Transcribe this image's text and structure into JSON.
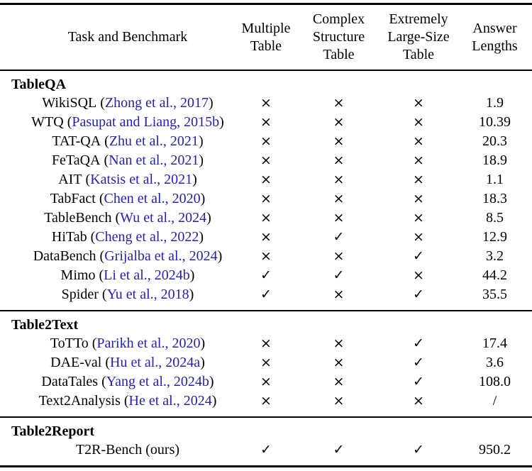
{
  "punct": {
    "open": "(",
    "close": ")"
  },
  "colors": {
    "citation": "#2222bb",
    "rule": "#000000",
    "text": "#000000"
  },
  "table": {
    "header": {
      "benchmark": "Task and Benchmark",
      "multiple": "Multiple\nTable",
      "complex": "Complex\nStructure\nTable",
      "large": "Extremely\nLarge-Size\nTable",
      "answer": "Answer\nLengths"
    },
    "sections": [
      {
        "title": "TableQA",
        "rows": [
          {
            "name": "WikiSQL",
            "cite": "Zhong et al., 2017",
            "marks": [
              "×",
              "×",
              "×"
            ],
            "answer": "1.9"
          },
          {
            "name": "WTQ",
            "cite": "Pasupat and Liang, 2015b",
            "marks": [
              "×",
              "×",
              "×"
            ],
            "answer": "10.39"
          },
          {
            "name": "TAT-QA",
            "cite": "Zhu et al., 2021",
            "marks": [
              "×",
              "×",
              "×"
            ],
            "answer": "20.3"
          },
          {
            "name": "FeTaQA",
            "cite": "Nan et al., 2021",
            "marks": [
              "×",
              "×",
              "×"
            ],
            "answer": "18.9"
          },
          {
            "name": "AIT",
            "cite": "Katsis et al., 2021",
            "marks": [
              "×",
              "×",
              "×"
            ],
            "answer": "1.1"
          },
          {
            "name": "TabFact",
            "cite": "Chen et al., 2020",
            "marks": [
              "×",
              "×",
              "×"
            ],
            "answer": "18.3"
          },
          {
            "name": "TableBench",
            "cite": "Wu et al., 2024",
            "marks": [
              "×",
              "×",
              "×"
            ],
            "answer": "8.5"
          },
          {
            "name": "HiTab",
            "cite": "Cheng et al., 2022",
            "marks": [
              "×",
              "✓",
              "×"
            ],
            "answer": "12.9"
          },
          {
            "name": "DataBench",
            "cite": "Grijalba et al., 2024",
            "marks": [
              "×",
              "×",
              "✓"
            ],
            "answer": "3.2"
          },
          {
            "name": "Mimo",
            "cite": "Li et al., 2024b",
            "marks": [
              "✓",
              "✓",
              "×"
            ],
            "answer": "44.2"
          },
          {
            "name": "Spider",
            "cite": "Yu et al., 2018",
            "marks": [
              "✓",
              "×",
              "✓"
            ],
            "answer": "35.5"
          }
        ]
      },
      {
        "title": "Table2Text",
        "rows": [
          {
            "name": "ToTTo",
            "cite": "Parikh et al., 2020",
            "marks": [
              "×",
              "×",
              "✓"
            ],
            "answer": "17.4"
          },
          {
            "name": "DAE-val",
            "cite": "Hu et al., 2024a",
            "marks": [
              "×",
              "×",
              "✓"
            ],
            "answer": "3.6"
          },
          {
            "name": "DataTales",
            "cite": "Yang et al., 2024b",
            "marks": [
              "×",
              "×",
              "✓"
            ],
            "answer": "108.0"
          },
          {
            "name": "Text2Analysis",
            "cite": "He et al., 2024",
            "marks": [
              "×",
              "×",
              "×"
            ],
            "answer": "/"
          }
        ]
      },
      {
        "title": "Table2Report",
        "rows": [
          {
            "name": "T2R-Bench",
            "cite": "ours",
            "marks": [
              "✓",
              "✓",
              "✓"
            ],
            "answer": "950.2"
          }
        ]
      }
    ]
  }
}
